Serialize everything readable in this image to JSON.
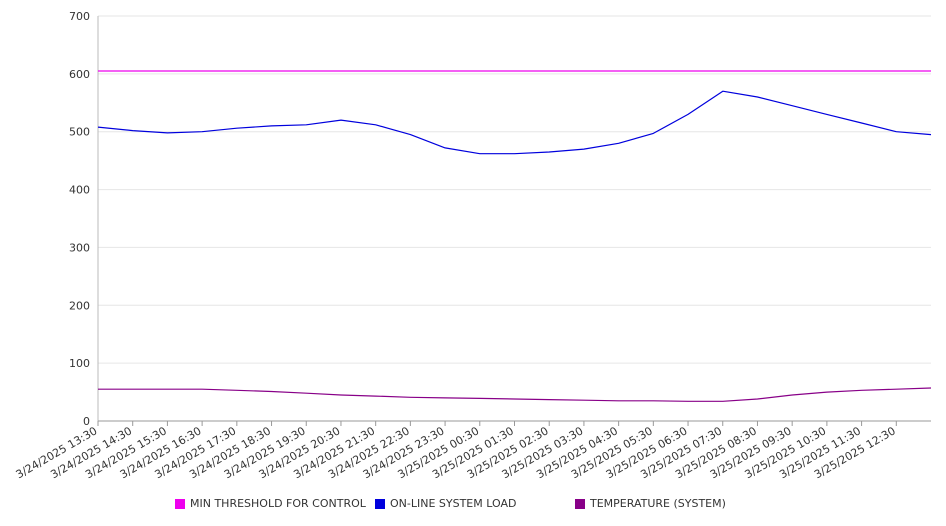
{
  "chart_data": {
    "type": "line",
    "title": "",
    "xlabel": "",
    "ylabel": "",
    "ylim": [
      0,
      700
    ],
    "yticks": [
      "0",
      "100",
      "200",
      "300",
      "400",
      "500",
      "600",
      "700"
    ],
    "x_tick_labels": [
      "3/24/2025 13:30",
      "3/24/2025 14:30",
      "3/24/2025 15:30",
      "3/24/2025 16:30",
      "3/24/2025 17:30",
      "3/24/2025 18:30",
      "3/24/2025 19:30",
      "3/24/2025 20:30",
      "3/24/2025 21:30",
      "3/24/2025 22:30",
      "3/24/2025 23:30",
      "3/25/2025 00:30",
      "3/25/2025 01:30",
      "3/25/2025 02:30",
      "3/25/2025 03:30",
      "3/25/2025 04:30",
      "3/25/2025 05:30",
      "3/25/2025 06:30",
      "3/25/2025 07:30",
      "3/25/2025 08:30",
      "3/25/2025 09:30",
      "3/25/2025 10:30",
      "3/25/2025 11:30",
      "3/25/2025 12:30"
    ],
    "x_range": [
      "3/24/2025 13:30",
      "3/25/2025 13:30"
    ],
    "grid": "horizontal",
    "legend_position": "bottom",
    "series": [
      {
        "name": "MIN THRESHOLD FOR CONTROL",
        "color": "#ee00ee",
        "x": [
          "3/24/2025 13:30",
          "3/25/2025 13:30"
        ],
        "values": [
          605,
          605
        ]
      },
      {
        "name": "ON-LINE SYSTEM LOAD",
        "color": "#0000dd",
        "x": [
          "3/24/2025 13:30",
          "3/24/2025 14:30",
          "3/24/2025 15:30",
          "3/24/2025 16:30",
          "3/24/2025 17:30",
          "3/24/2025 18:30",
          "3/24/2025 19:30",
          "3/24/2025 20:30",
          "3/24/2025 21:30",
          "3/24/2025 22:30",
          "3/24/2025 23:30",
          "3/25/2025 00:30",
          "3/25/2025 01:30",
          "3/25/2025 02:30",
          "3/25/2025 03:30",
          "3/25/2025 04:30",
          "3/25/2025 05:30",
          "3/25/2025 06:30",
          "3/25/2025 07:30",
          "3/25/2025 08:30",
          "3/25/2025 09:30",
          "3/25/2025 10:30",
          "3/25/2025 11:30",
          "3/25/2025 12:30",
          "3/25/2025 13:30"
        ],
        "values": [
          508,
          502,
          498,
          500,
          506,
          510,
          512,
          520,
          512,
          495,
          472,
          462,
          462,
          465,
          470,
          480,
          497,
          530,
          570,
          560,
          545,
          530,
          515,
          500,
          495
        ]
      },
      {
        "name": "TEMPERATURE (SYSTEM)",
        "color": "#880088",
        "x": [
          "3/24/2025 13:30",
          "3/24/2025 14:30",
          "3/24/2025 15:30",
          "3/24/2025 16:30",
          "3/24/2025 17:30",
          "3/24/2025 18:30",
          "3/24/2025 19:30",
          "3/24/2025 20:30",
          "3/24/2025 21:30",
          "3/24/2025 22:30",
          "3/24/2025 23:30",
          "3/25/2025 00:30",
          "3/25/2025 01:30",
          "3/25/2025 02:30",
          "3/25/2025 03:30",
          "3/25/2025 04:30",
          "3/25/2025 05:30",
          "3/25/2025 06:30",
          "3/25/2025 07:30",
          "3/25/2025 08:30",
          "3/25/2025 09:30",
          "3/25/2025 10:30",
          "3/25/2025 11:30",
          "3/25/2025 12:30",
          "3/25/2025 13:30"
        ],
        "values": [
          55,
          55,
          55,
          55,
          53,
          51,
          48,
          45,
          43,
          41,
          40,
          39,
          38,
          37,
          36,
          35,
          35,
          34,
          34,
          38,
          45,
          50,
          53,
          55,
          57
        ]
      }
    ]
  }
}
